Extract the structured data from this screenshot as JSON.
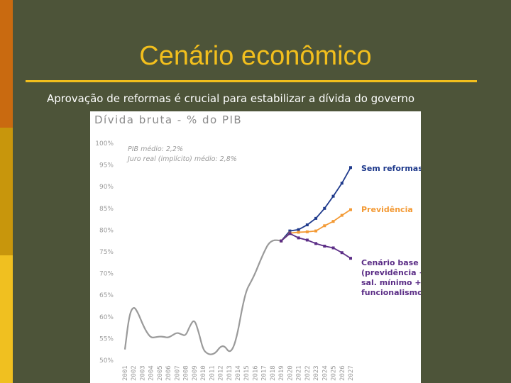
{
  "slide": {
    "title": "Cenário econômico",
    "subtitle": "Aprovação de reformas é crucial para estabilizar a dívida do governo",
    "colors": {
      "background": "#4d5439",
      "title": "#f2bf1d",
      "accent_1": "#c96a10",
      "accent_2": "#c8960c",
      "accent_3": "#f0c020"
    }
  },
  "chart_data": {
    "type": "line",
    "title": "Dívida bruta - % do PIB",
    "notes": [
      "PIB médio: 2,2%",
      "Juro real (implícito) médio: 2,8%"
    ],
    "x": [
      "2001",
      "2002",
      "2003",
      "2004",
      "2005",
      "2006",
      "2007",
      "2008",
      "2009",
      "2010",
      "2011",
      "2012",
      "2013",
      "2014",
      "2015",
      "2016",
      "2017",
      "2018",
      "2019",
      "2020",
      "2021",
      "2022",
      "2023",
      "2024",
      "2025",
      "2026",
      "2027"
    ],
    "yticks": [
      "50%",
      "55%",
      "60%",
      "65%",
      "70%",
      "75%",
      "80%",
      "85%",
      "90%",
      "95%",
      "100%"
    ],
    "ylim": [
      50,
      100
    ],
    "grid": false,
    "historical": {
      "color": "#9a9a9a",
      "points": [
        [
          2001,
          52.5
        ],
        [
          2001.5,
          60.5
        ],
        [
          2002,
          62.5
        ],
        [
          2002.5,
          61.0
        ],
        [
          2003,
          58.5
        ],
        [
          2003.5,
          56.5
        ],
        [
          2004,
          55.2
        ],
        [
          2004.5,
          55.3
        ],
        [
          2005,
          55.5
        ],
        [
          2005.5,
          55.4
        ],
        [
          2006,
          55.2
        ],
        [
          2006.5,
          55.8
        ],
        [
          2007,
          56.4
        ],
        [
          2007.5,
          56.0
        ],
        [
          2008,
          55.6
        ],
        [
          2008.5,
          58.0
        ],
        [
          2009,
          59.5
        ],
        [
          2009.5,
          56.5
        ],
        [
          2010,
          52.5
        ],
        [
          2010.5,
          51.5
        ],
        [
          2011,
          51.3
        ],
        [
          2011.5,
          51.8
        ],
        [
          2012,
          53.2
        ],
        [
          2012.5,
          53.3
        ],
        [
          2013,
          51.8
        ],
        [
          2013.5,
          52.8
        ],
        [
          2014,
          56.4
        ],
        [
          2014.5,
          62.0
        ],
        [
          2015,
          66.2
        ],
        [
          2015.5,
          68.0
        ],
        [
          2016,
          70.0
        ],
        [
          2016.5,
          72.5
        ],
        [
          2017,
          74.8
        ],
        [
          2017.5,
          76.8
        ],
        [
          2018,
          77.6
        ],
        [
          2018.5,
          77.7
        ],
        [
          2019,
          77.5
        ]
      ]
    },
    "series": [
      {
        "name": "Sem reformas",
        "color": "#1f3a8c",
        "points": [
          [
            2019,
            77.5
          ],
          [
            2020,
            79.8
          ],
          [
            2021,
            80.1
          ],
          [
            2022,
            81.2
          ],
          [
            2023,
            82.7
          ],
          [
            2024,
            85.0
          ],
          [
            2025,
            87.8
          ],
          [
            2026,
            90.8
          ],
          [
            2027,
            94.4
          ]
        ]
      },
      {
        "name": "Previdência",
        "color": "#f39a35",
        "points": [
          [
            2019,
            77.5
          ],
          [
            2020,
            79.3
          ],
          [
            2021,
            79.5
          ],
          [
            2022,
            79.6
          ],
          [
            2023,
            79.8
          ],
          [
            2024,
            81.0
          ],
          [
            2025,
            82.0
          ],
          [
            2026,
            83.4
          ],
          [
            2027,
            84.7
          ]
        ]
      },
      {
        "name": "Cenário base",
        "color": "#5b2d86",
        "points": [
          [
            2019,
            77.5
          ],
          [
            2020,
            79.2
          ],
          [
            2021,
            78.2
          ],
          [
            2022,
            77.7
          ],
          [
            2023,
            76.9
          ],
          [
            2024,
            76.3
          ],
          [
            2025,
            75.9
          ],
          [
            2026,
            74.8
          ],
          [
            2027,
            73.5
          ]
        ]
      }
    ],
    "labels": [
      {
        "lines": [
          "Sem reformas"
        ],
        "color": "#1f3a8c"
      },
      {
        "lines": [
          "Previdência"
        ],
        "color": "#f39a35"
      },
      {
        "lines": [
          "Cenário base",
          "(previdência +",
          "sal. mínimo +",
          "funcionalismo)"
        ],
        "color": "#5b2d86"
      }
    ]
  }
}
